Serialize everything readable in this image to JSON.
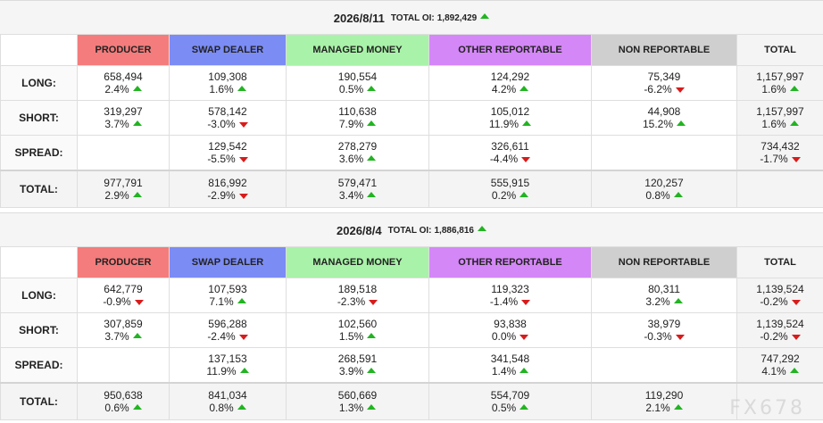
{
  "reports": [
    {
      "date": "2026/8/11",
      "total_oi_label": "TOTAL OI:",
      "total_oi_value": "1,892,429",
      "total_oi_trend": "up",
      "headers": [
        "PRODUCER",
        "SWAP DEALER",
        "MANAGED MONEY",
        "OTHER REPORTABLE",
        "NON REPORTABLE",
        "TOTAL"
      ],
      "rows": [
        {
          "label": "LONG:",
          "cells": [
            {
              "value": "658,494",
              "pct": "2.4%",
              "trend": "up"
            },
            {
              "value": "109,308",
              "pct": "1.6%",
              "trend": "up"
            },
            {
              "value": "190,554",
              "pct": "0.5%",
              "trend": "up"
            },
            {
              "value": "124,292",
              "pct": "4.2%",
              "trend": "up"
            },
            {
              "value": "75,349",
              "pct": "-6.2%",
              "trend": "down"
            },
            {
              "value": "1,157,997",
              "pct": "1.6%",
              "trend": "up"
            }
          ]
        },
        {
          "label": "SHORT:",
          "cells": [
            {
              "value": "319,297",
              "pct": "3.7%",
              "trend": "up"
            },
            {
              "value": "578,142",
              "pct": "-3.0%",
              "trend": "down"
            },
            {
              "value": "110,638",
              "pct": "7.9%",
              "trend": "up"
            },
            {
              "value": "105,012",
              "pct": "11.9%",
              "trend": "up"
            },
            {
              "value": "44,908",
              "pct": "15.2%",
              "trend": "up"
            },
            {
              "value": "1,157,997",
              "pct": "1.6%",
              "trend": "up"
            }
          ]
        },
        {
          "label": "SPREAD:",
          "cells": [
            {
              "value": "",
              "pct": "",
              "trend": ""
            },
            {
              "value": "129,542",
              "pct": "-5.5%",
              "trend": "down"
            },
            {
              "value": "278,279",
              "pct": "3.6%",
              "trend": "up"
            },
            {
              "value": "326,611",
              "pct": "-4.4%",
              "trend": "down"
            },
            {
              "value": "",
              "pct": "",
              "trend": ""
            },
            {
              "value": "734,432",
              "pct": "-1.7%",
              "trend": "down"
            }
          ]
        },
        {
          "label": "TOTAL:",
          "cells": [
            {
              "value": "977,791",
              "pct": "2.9%",
              "trend": "up"
            },
            {
              "value": "816,992",
              "pct": "-2.9%",
              "trend": "down"
            },
            {
              "value": "579,471",
              "pct": "3.4%",
              "trend": "up"
            },
            {
              "value": "555,915",
              "pct": "0.2%",
              "trend": "up"
            },
            {
              "value": "120,257",
              "pct": "0.8%",
              "trend": "up"
            },
            {
              "value": "",
              "pct": "",
              "trend": ""
            }
          ]
        }
      ]
    },
    {
      "date": "2026/8/4",
      "total_oi_label": "TOTAL OI:",
      "total_oi_value": "1,886,816",
      "total_oi_trend": "up",
      "headers": [
        "PRODUCER",
        "SWAP DEALER",
        "MANAGED MONEY",
        "OTHER REPORTABLE",
        "NON REPORTABLE",
        "TOTAL"
      ],
      "rows": [
        {
          "label": "LONG:",
          "cells": [
            {
              "value": "642,779",
              "pct": "-0.9%",
              "trend": "down"
            },
            {
              "value": "107,593",
              "pct": "7.1%",
              "trend": "up"
            },
            {
              "value": "189,518",
              "pct": "-2.3%",
              "trend": "down"
            },
            {
              "value": "119,323",
              "pct": "-1.4%",
              "trend": "down"
            },
            {
              "value": "80,311",
              "pct": "3.2%",
              "trend": "up"
            },
            {
              "value": "1,139,524",
              "pct": "-0.2%",
              "trend": "down"
            }
          ]
        },
        {
          "label": "SHORT:",
          "cells": [
            {
              "value": "307,859",
              "pct": "3.7%",
              "trend": "up"
            },
            {
              "value": "596,288",
              "pct": "-2.4%",
              "trend": "down"
            },
            {
              "value": "102,560",
              "pct": "1.5%",
              "trend": "up"
            },
            {
              "value": "93,838",
              "pct": "0.0%",
              "trend": "down"
            },
            {
              "value": "38,979",
              "pct": "-0.3%",
              "trend": "down"
            },
            {
              "value": "1,139,524",
              "pct": "-0.2%",
              "trend": "down"
            }
          ]
        },
        {
          "label": "SPREAD:",
          "cells": [
            {
              "value": "",
              "pct": "",
              "trend": ""
            },
            {
              "value": "137,153",
              "pct": "11.9%",
              "trend": "up"
            },
            {
              "value": "268,591",
              "pct": "3.9%",
              "trend": "up"
            },
            {
              "value": "341,548",
              "pct": "1.4%",
              "trend": "up"
            },
            {
              "value": "",
              "pct": "",
              "trend": ""
            },
            {
              "value": "747,292",
              "pct": "4.1%",
              "trend": "up"
            }
          ]
        },
        {
          "label": "TOTAL:",
          "cells": [
            {
              "value": "950,638",
              "pct": "0.6%",
              "trend": "up"
            },
            {
              "value": "841,034",
              "pct": "0.8%",
              "trend": "up"
            },
            {
              "value": "560,669",
              "pct": "1.3%",
              "trend": "up"
            },
            {
              "value": "554,709",
              "pct": "0.5%",
              "trend": "up"
            },
            {
              "value": "119,290",
              "pct": "2.1%",
              "trend": "up"
            },
            {
              "value": "",
              "pct": "",
              "trend": ""
            }
          ]
        }
      ]
    }
  ],
  "watermark": "FX678",
  "colors": {
    "producer": "#f47c7c",
    "swap_dealer": "#7b8cf5",
    "managed_money": "#a9f2a9",
    "other_reportable": "#d487f7",
    "non_reportable": "#cfcfcf",
    "up": "#22b422",
    "down": "#d81b1b"
  }
}
